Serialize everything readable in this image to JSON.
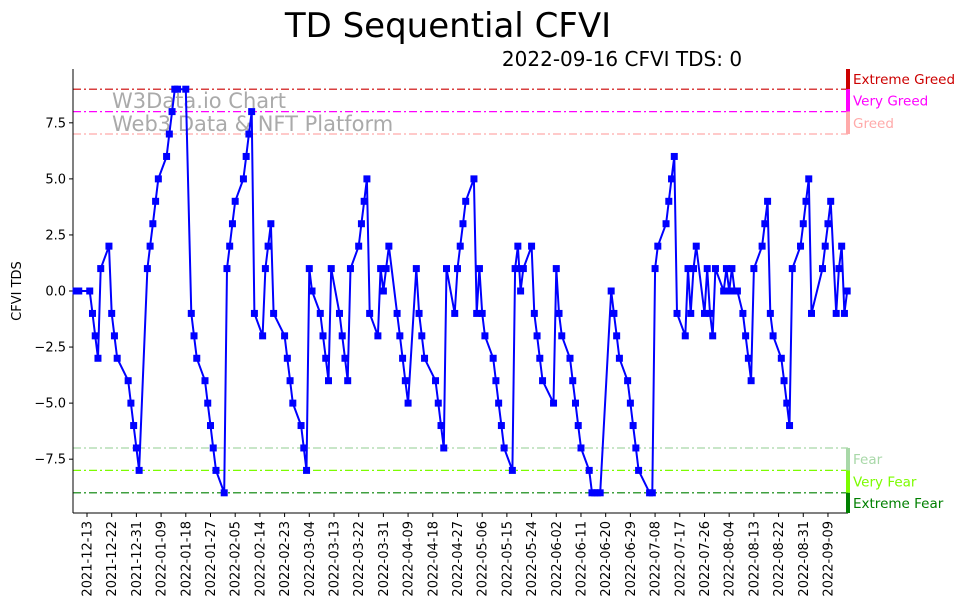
{
  "chart_data": {
    "type": "line",
    "title": "TD Sequential CFVI",
    "subtitle": "2022-09-16 CFVI TDS: 0",
    "xlabel": "",
    "ylabel": "CFVI TDS",
    "xlim": [
      "2021-12-08",
      "2022-09-16"
    ],
    "ylim": [
      -9.9,
      9.9
    ],
    "grid": false,
    "yticks": [
      -7.5,
      -5.0,
      -2.5,
      0.0,
      2.5,
      5.0,
      7.5
    ],
    "ytick_labels": [
      "−7.5",
      "−5.0",
      "−2.5",
      "0.0",
      "2.5",
      "5.0",
      "7.5"
    ],
    "xtick_labels": [
      "2021-12-13",
      "2021-12-22",
      "2021-12-31",
      "2022-01-09",
      "2022-01-18",
      "2022-01-27",
      "2022-02-05",
      "2022-02-14",
      "2022-02-23",
      "2022-03-04",
      "2022-03-13",
      "2022-03-22",
      "2022-03-31",
      "2022-04-09",
      "2022-04-18",
      "2022-04-27",
      "2022-05-06",
      "2022-05-15",
      "2022-05-24",
      "2022-06-02",
      "2022-06-11",
      "2022-06-20",
      "2022-06-29",
      "2022-07-08",
      "2022-07-17",
      "2022-07-26",
      "2022-08-04",
      "2022-08-13",
      "2022-08-22",
      "2022-08-31",
      "2022-09-09"
    ],
    "watermark": [
      "W3Data.io Chart",
      "Web3 Data & NFT Platform"
    ],
    "series": [
      {
        "name": "CFVI TDS",
        "color": "#0000ff",
        "marker": "square",
        "points": [
          [
            "2021-12-09",
            0
          ],
          [
            "2021-12-10",
            0
          ],
          [
            "2021-12-14",
            0
          ],
          [
            "2021-12-15",
            -1
          ],
          [
            "2021-12-16",
            -2
          ],
          [
            "2021-12-17",
            -3
          ],
          [
            "2021-12-18",
            1
          ],
          [
            "2021-12-21",
            2
          ],
          [
            "2021-12-22",
            -1
          ],
          [
            "2021-12-23",
            -2
          ],
          [
            "2021-12-24",
            -3
          ],
          [
            "2021-12-28",
            -4
          ],
          [
            "2021-12-29",
            -5
          ],
          [
            "2021-12-30",
            -6
          ],
          [
            "2021-12-31",
            -7
          ],
          [
            "2022-01-01",
            -8
          ],
          [
            "2022-01-04",
            1
          ],
          [
            "2022-01-05",
            2
          ],
          [
            "2022-01-06",
            3
          ],
          [
            "2022-01-07",
            4
          ],
          [
            "2022-01-08",
            5
          ],
          [
            "2022-01-11",
            6
          ],
          [
            "2022-01-12",
            7
          ],
          [
            "2022-01-13",
            8
          ],
          [
            "2022-01-14",
            9
          ],
          [
            "2022-01-15",
            9
          ],
          [
            "2022-01-18",
            9
          ],
          [
            "2022-01-20",
            -1
          ],
          [
            "2022-01-21",
            -2
          ],
          [
            "2022-01-22",
            -3
          ],
          [
            "2022-01-25",
            -4
          ],
          [
            "2022-01-26",
            -5
          ],
          [
            "2022-01-27",
            -6
          ],
          [
            "2022-01-28",
            -7
          ],
          [
            "2022-01-29",
            -8
          ],
          [
            "2022-02-01",
            -9
          ],
          [
            "2022-02-02",
            1
          ],
          [
            "2022-02-03",
            2
          ],
          [
            "2022-02-04",
            3
          ],
          [
            "2022-02-05",
            4
          ],
          [
            "2022-02-08",
            5
          ],
          [
            "2022-02-09",
            6
          ],
          [
            "2022-02-10",
            7
          ],
          [
            "2022-02-11",
            8
          ],
          [
            "2022-02-12",
            -1
          ],
          [
            "2022-02-15",
            -2
          ],
          [
            "2022-02-16",
            1
          ],
          [
            "2022-02-17",
            2
          ],
          [
            "2022-02-18",
            3
          ],
          [
            "2022-02-19",
            -1
          ],
          [
            "2022-02-23",
            -2
          ],
          [
            "2022-02-24",
            -3
          ],
          [
            "2022-02-25",
            -4
          ],
          [
            "2022-02-26",
            -5
          ],
          [
            "2022-03-01",
            -6
          ],
          [
            "2022-03-02",
            -7
          ],
          [
            "2022-03-03",
            -8
          ],
          [
            "2022-03-04",
            1
          ],
          [
            "2022-03-05",
            0
          ],
          [
            "2022-03-08",
            -1
          ],
          [
            "2022-03-09",
            -2
          ],
          [
            "2022-03-10",
            -3
          ],
          [
            "2022-03-11",
            -4
          ],
          [
            "2022-03-12",
            1
          ],
          [
            "2022-03-15",
            -1
          ],
          [
            "2022-03-16",
            -2
          ],
          [
            "2022-03-17",
            -3
          ],
          [
            "2022-03-18",
            -4
          ],
          [
            "2022-03-19",
            1
          ],
          [
            "2022-03-22",
            2
          ],
          [
            "2022-03-23",
            3
          ],
          [
            "2022-03-24",
            4
          ],
          [
            "2022-03-25",
            5
          ],
          [
            "2022-03-26",
            -1
          ],
          [
            "2022-03-29",
            -2
          ],
          [
            "2022-03-30",
            1
          ],
          [
            "2022-03-31",
            0
          ],
          [
            "2022-04-01",
            1
          ],
          [
            "2022-04-02",
            2
          ],
          [
            "2022-04-05",
            -1
          ],
          [
            "2022-04-06",
            -2
          ],
          [
            "2022-04-07",
            -3
          ],
          [
            "2022-04-08",
            -4
          ],
          [
            "2022-04-09",
            -5
          ],
          [
            "2022-04-12",
            1
          ],
          [
            "2022-04-13",
            -1
          ],
          [
            "2022-04-14",
            -2
          ],
          [
            "2022-04-15",
            -3
          ],
          [
            "2022-04-19",
            -4
          ],
          [
            "2022-04-20",
            -5
          ],
          [
            "2022-04-21",
            -6
          ],
          [
            "2022-04-22",
            -7
          ],
          [
            "2022-04-23",
            1
          ],
          [
            "2022-04-26",
            -1
          ],
          [
            "2022-04-27",
            1
          ],
          [
            "2022-04-28",
            2
          ],
          [
            "2022-04-29",
            3
          ],
          [
            "2022-04-30",
            4
          ],
          [
            "2022-05-03",
            5
          ],
          [
            "2022-05-04",
            -1
          ],
          [
            "2022-05-05",
            1
          ],
          [
            "2022-05-06",
            -1
          ],
          [
            "2022-05-07",
            -2
          ],
          [
            "2022-05-10",
            -3
          ],
          [
            "2022-05-11",
            -4
          ],
          [
            "2022-05-12",
            -5
          ],
          [
            "2022-05-13",
            -6
          ],
          [
            "2022-05-14",
            -7
          ],
          [
            "2022-05-17",
            -8
          ],
          [
            "2022-05-18",
            1
          ],
          [
            "2022-05-19",
            2
          ],
          [
            "2022-05-20",
            0
          ],
          [
            "2022-05-21",
            1
          ],
          [
            "2022-05-24",
            2
          ],
          [
            "2022-05-25",
            -1
          ],
          [
            "2022-05-26",
            -2
          ],
          [
            "2022-05-27",
            -3
          ],
          [
            "2022-05-28",
            -4
          ],
          [
            "2022-06-01",
            -5
          ],
          [
            "2022-06-02",
            1
          ],
          [
            "2022-06-03",
            -1
          ],
          [
            "2022-06-04",
            -2
          ],
          [
            "2022-06-07",
            -3
          ],
          [
            "2022-06-08",
            -4
          ],
          [
            "2022-06-09",
            -5
          ],
          [
            "2022-06-10",
            -6
          ],
          [
            "2022-06-11",
            -7
          ],
          [
            "2022-06-14",
            -8
          ],
          [
            "2022-06-15",
            -9
          ],
          [
            "2022-06-16",
            -9
          ],
          [
            "2022-06-17",
            -9
          ],
          [
            "2022-06-18",
            -9
          ],
          [
            "2022-06-22",
            0
          ],
          [
            "2022-06-23",
            -1
          ],
          [
            "2022-06-24",
            -2
          ],
          [
            "2022-06-25",
            -3
          ],
          [
            "2022-06-28",
            -4
          ],
          [
            "2022-06-29",
            -5
          ],
          [
            "2022-06-30",
            -6
          ],
          [
            "2022-07-01",
            -7
          ],
          [
            "2022-07-02",
            -8
          ],
          [
            "2022-07-06",
            -9
          ],
          [
            "2022-07-07",
            -9
          ],
          [
            "2022-07-08",
            1
          ],
          [
            "2022-07-09",
            2
          ],
          [
            "2022-07-12",
            3
          ],
          [
            "2022-07-13",
            4
          ],
          [
            "2022-07-14",
            5
          ],
          [
            "2022-07-15",
            6
          ],
          [
            "2022-07-16",
            -1
          ],
          [
            "2022-07-19",
            -2
          ],
          [
            "2022-07-20",
            1
          ],
          [
            "2022-07-21",
            -1
          ],
          [
            "2022-07-22",
            1
          ],
          [
            "2022-07-23",
            2
          ],
          [
            "2022-07-26",
            -1
          ],
          [
            "2022-07-27",
            1
          ],
          [
            "2022-07-28",
            -1
          ],
          [
            "2022-07-29",
            -2
          ],
          [
            "2022-07-30",
            1
          ],
          [
            "2022-08-02",
            0
          ],
          [
            "2022-08-03",
            1
          ],
          [
            "2022-08-04",
            0
          ],
          [
            "2022-08-05",
            1
          ],
          [
            "2022-08-06",
            0
          ],
          [
            "2022-08-07",
            0
          ],
          [
            "2022-08-09",
            -1
          ],
          [
            "2022-08-10",
            -2
          ],
          [
            "2022-08-11",
            -3
          ],
          [
            "2022-08-12",
            -4
          ],
          [
            "2022-08-13",
            1
          ],
          [
            "2022-08-16",
            2
          ],
          [
            "2022-08-17",
            3
          ],
          [
            "2022-08-18",
            4
          ],
          [
            "2022-08-19",
            -1
          ],
          [
            "2022-08-20",
            -2
          ],
          [
            "2022-08-23",
            -3
          ],
          [
            "2022-08-24",
            -4
          ],
          [
            "2022-08-25",
            -5
          ],
          [
            "2022-08-26",
            -6
          ],
          [
            "2022-08-27",
            1
          ],
          [
            "2022-08-30",
            2
          ],
          [
            "2022-08-31",
            3
          ],
          [
            "2022-09-01",
            4
          ],
          [
            "2022-09-02",
            5
          ],
          [
            "2022-09-03",
            -1
          ],
          [
            "2022-09-07",
            1
          ],
          [
            "2022-09-08",
            2
          ],
          [
            "2022-09-09",
            3
          ],
          [
            "2022-09-10",
            4
          ],
          [
            "2022-09-12",
            -1
          ],
          [
            "2022-09-13",
            1
          ],
          [
            "2022-09-14",
            2
          ],
          [
            "2022-09-15",
            -1
          ],
          [
            "2022-09-16",
            0
          ]
        ]
      }
    ],
    "reference_lines": [
      {
        "label": "Extreme Greed",
        "y": 9,
        "band": [
          9,
          9.9
        ],
        "color": "#cc0000"
      },
      {
        "label": "Very Greed",
        "y": 8,
        "band": [
          8,
          9
        ],
        "color": "#ff00ff"
      },
      {
        "label": "Greed",
        "y": 7,
        "band": [
          7,
          8
        ],
        "color": "#ffaaaa"
      },
      {
        "label": "Fear",
        "y": -7,
        "band": [
          -8,
          -7
        ],
        "color": "#a8d8a8"
      },
      {
        "label": "Very Fear",
        "y": -8,
        "band": [
          -9,
          -8
        ],
        "color": "#7cfc00"
      },
      {
        "label": "Extreme Fear",
        "y": -9,
        "band": [
          -9.9,
          -9
        ],
        "color": "#008000"
      }
    ]
  }
}
